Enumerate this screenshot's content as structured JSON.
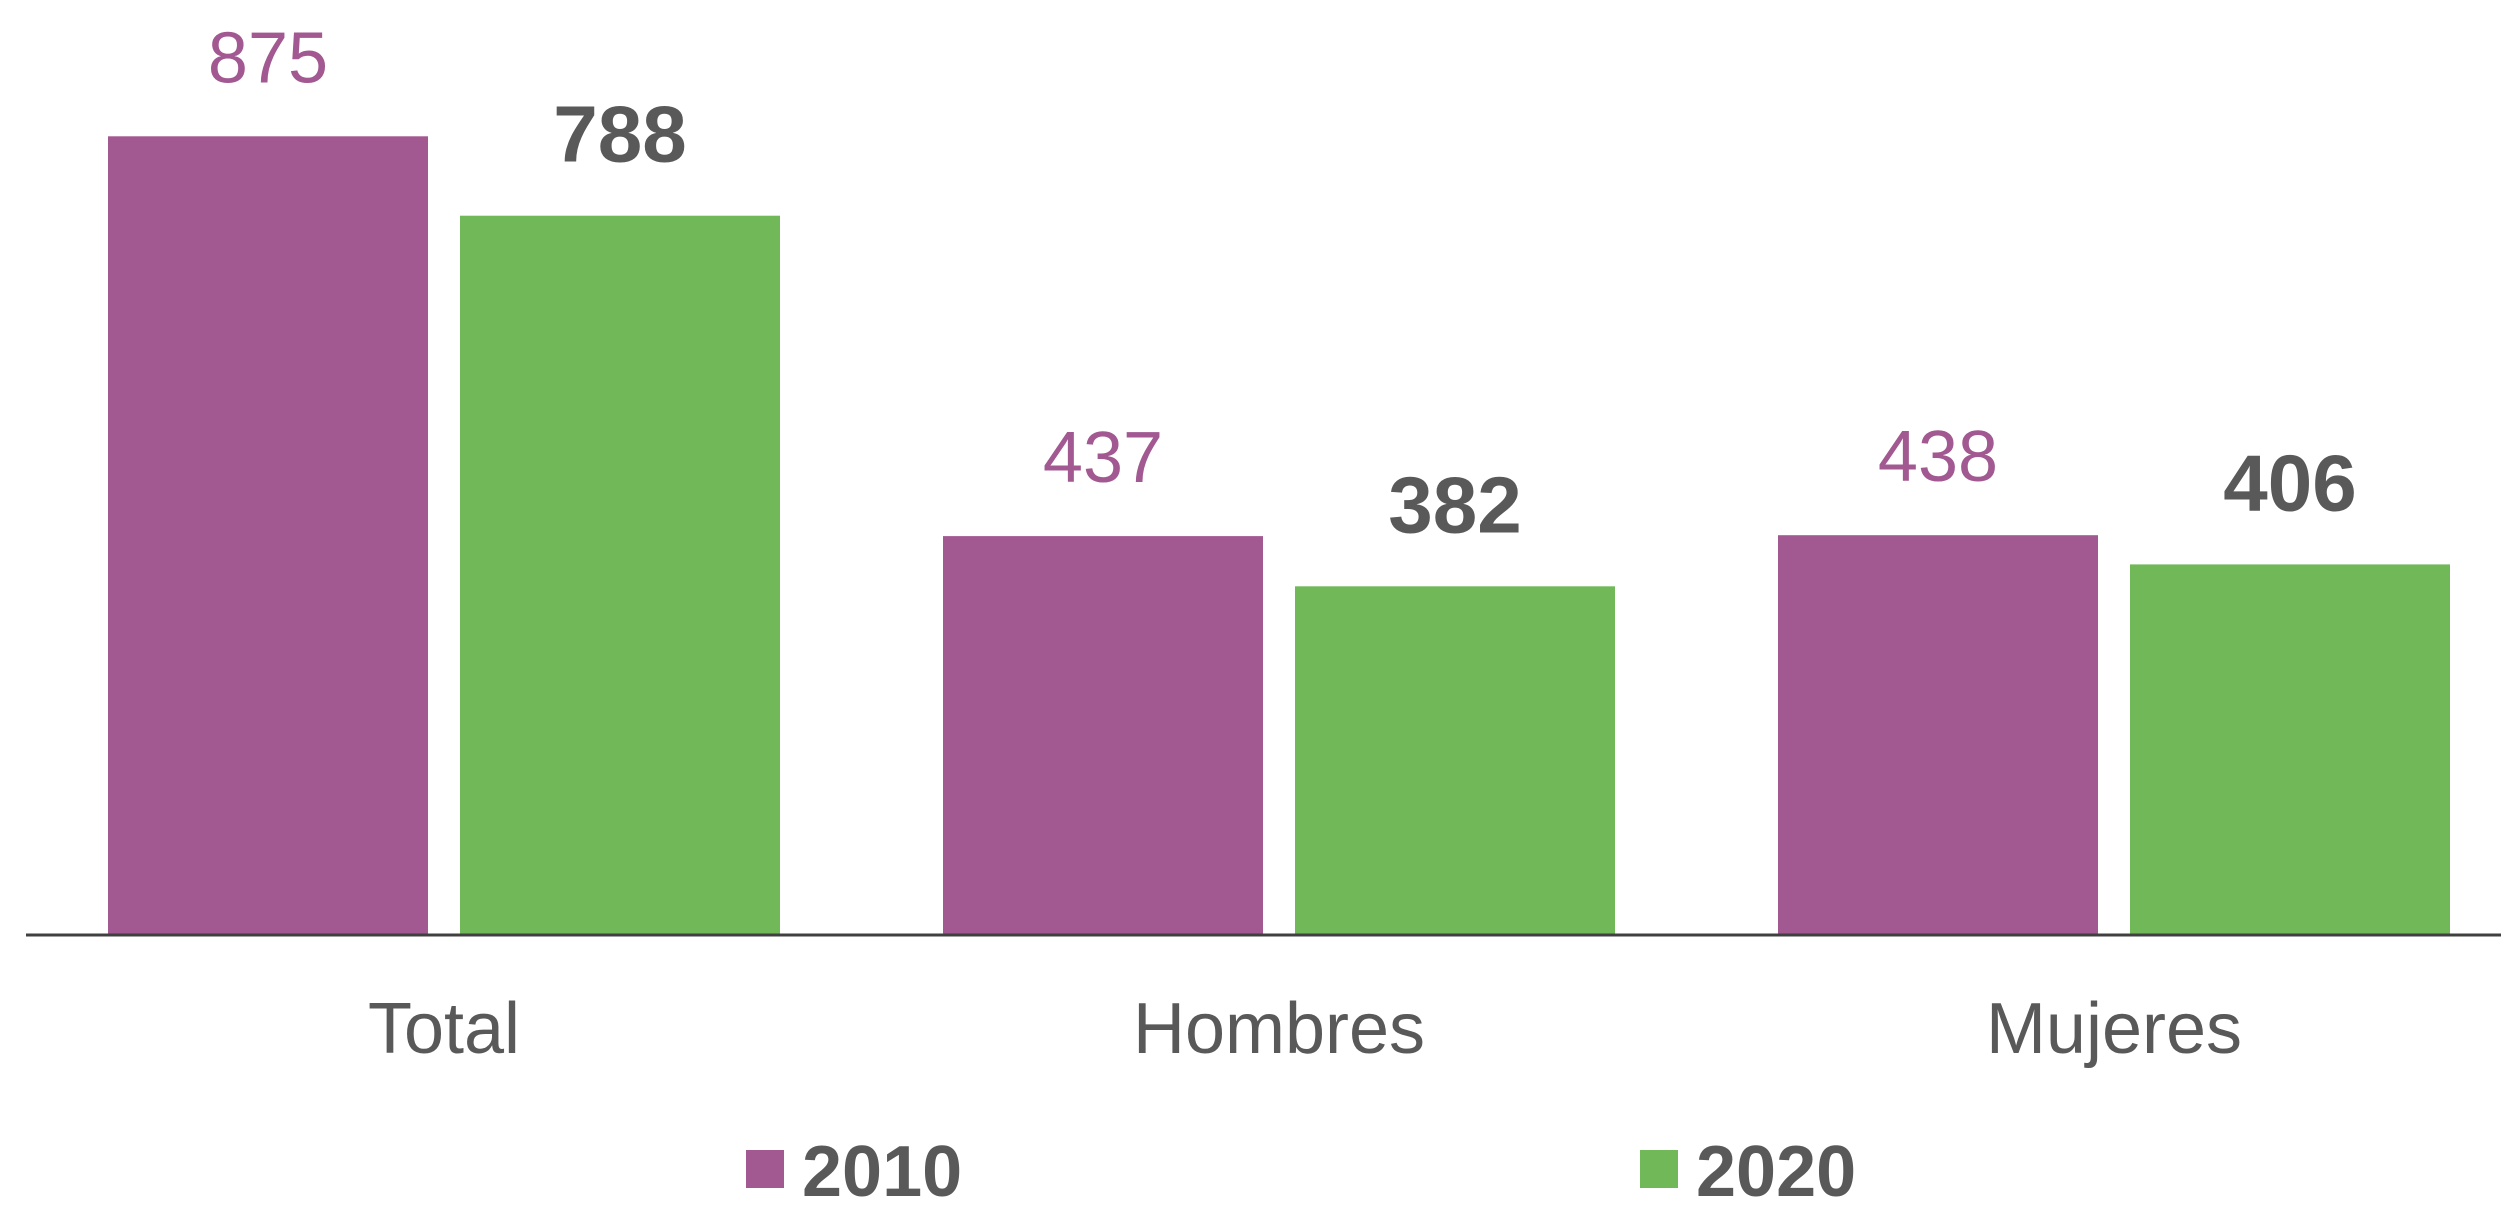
{
  "chart_data": {
    "type": "bar",
    "categories": [
      "Total",
      "Hombres",
      "Mujeres"
    ],
    "series": [
      {
        "name": "2010",
        "values": [
          875,
          437,
          438
        ],
        "color": "#a25891",
        "label_color": "#a25891"
      },
      {
        "name": "2020",
        "values": [
          788,
          382,
          406
        ],
        "color": "#70b858",
        "label_color": "#595959"
      }
    ],
    "ylim": [
      0,
      1000
    ],
    "grid": false,
    "legend_position": "bottom",
    "axis_color": "#404040",
    "category_label_color": "#595959",
    "legend_text_color": "#595959"
  }
}
